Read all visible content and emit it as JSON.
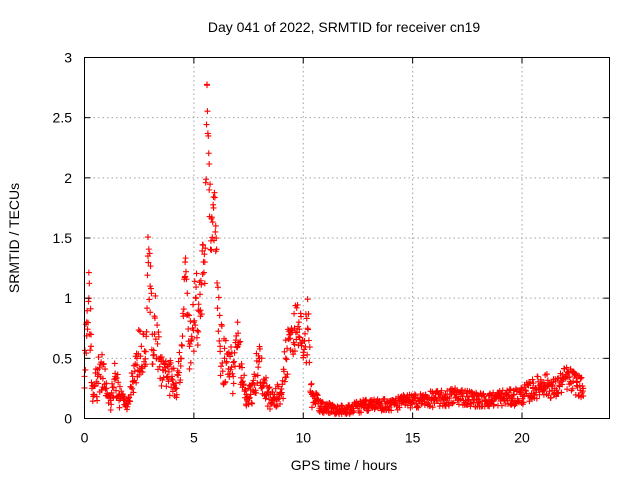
{
  "chart_data": {
    "type": "scatter",
    "title": "Day 041 of 2022, SRMTID for receiver cn19",
    "xlabel": "GPS time / hours",
    "ylabel": "SRMTID / TECUs",
    "xlim": [
      0,
      24
    ],
    "ylim": [
      0,
      3
    ],
    "xticks": [
      0,
      5,
      10,
      15,
      20
    ],
    "xtick_labels": [
      "0",
      "5",
      "10",
      "15",
      "20"
    ],
    "yticks": [
      0,
      0.5,
      1,
      1.5,
      2,
      2.5,
      3
    ],
    "ytick_labels": [
      "0",
      "0.5",
      "1",
      "1.5",
      "2",
      "2.5",
      "3"
    ],
    "grid": true,
    "marker": "+",
    "color": "#ff0000",
    "series": [
      {
        "name": "SRMTID",
        "envelope_note": "dense point cloud; x in hours, y in TECU (approximate, read from figure)",
        "x": [
          0,
          0.1,
          0.2,
          0.3,
          0.4,
          0.6,
          0.8,
          1.0,
          1.2,
          1.4,
          1.6,
          1.8,
          2.0,
          2.2,
          2.4,
          2.6,
          2.8,
          2.9,
          3.0,
          3.1,
          3.2,
          3.4,
          3.6,
          3.8,
          4.0,
          4.2,
          4.4,
          4.6,
          4.8,
          5.0,
          5.1,
          5.2,
          5.3,
          5.4,
          5.5,
          5.6,
          5.7,
          5.8,
          5.9,
          6.0,
          6.2,
          6.4,
          6.6,
          6.8,
          7.0,
          7.2,
          7.4,
          7.6,
          7.8,
          8.0,
          8.2,
          8.4,
          8.6,
          8.8,
          9.0,
          9.2,
          9.4,
          9.6,
          9.8,
          10.0,
          10.2,
          10.4,
          10.6,
          10.8,
          11.0,
          11.5,
          12.0,
          12.5,
          13.0,
          13.5,
          14.0,
          14.5,
          15.0,
          15.5,
          16.0,
          16.5,
          17.0,
          17.5,
          18.0,
          18.5,
          19.0,
          19.5,
          20.0,
          20.5,
          21.0,
          21.5,
          22.0,
          22.5,
          22.8
        ],
        "y": [
          0.35,
          0.8,
          1.0,
          0.6,
          0.2,
          0.35,
          0.45,
          0.25,
          0.15,
          0.35,
          0.2,
          0.15,
          0.12,
          0.35,
          0.5,
          0.6,
          0.45,
          1.35,
          1.1,
          0.7,
          0.85,
          0.5,
          0.4,
          0.35,
          0.35,
          0.25,
          0.5,
          1.3,
          0.6,
          0.8,
          1.0,
          0.9,
          0.85,
          1.2,
          1.3,
          2.77,
          1.9,
          1.4,
          1.75,
          1.6,
          0.6,
          0.5,
          0.55,
          0.35,
          0.8,
          0.3,
          0.2,
          0.2,
          0.35,
          0.5,
          0.3,
          0.2,
          0.15,
          0.2,
          0.2,
          0.5,
          0.7,
          0.75,
          0.8,
          0.55,
          0.75,
          0.2,
          0.15,
          0.1,
          0.1,
          0.08,
          0.08,
          0.1,
          0.12,
          0.12,
          0.12,
          0.14,
          0.15,
          0.16,
          0.17,
          0.17,
          0.2,
          0.18,
          0.16,
          0.16,
          0.18,
          0.18,
          0.2,
          0.25,
          0.3,
          0.25,
          0.35,
          0.3,
          0.25
        ],
        "spread": [
          0.1,
          0.3,
          0.3,
          0.25,
          0.1,
          0.2,
          0.2,
          0.12,
          0.08,
          0.15,
          0.1,
          0.08,
          0.06,
          0.15,
          0.2,
          0.25,
          0.2,
          0.2,
          0.3,
          0.25,
          0.3,
          0.2,
          0.15,
          0.15,
          0.15,
          0.12,
          0.2,
          0.15,
          0.25,
          0.3,
          0.3,
          0.35,
          0.35,
          0.3,
          0.3,
          0.1,
          0.3,
          0.3,
          0.2,
          0.3,
          0.3,
          0.2,
          0.25,
          0.15,
          0.2,
          0.15,
          0.1,
          0.1,
          0.15,
          0.2,
          0.15,
          0.1,
          0.08,
          0.1,
          0.1,
          0.2,
          0.2,
          0.2,
          0.2,
          0.2,
          0.3,
          0.1,
          0.08,
          0.05,
          0.05,
          0.04,
          0.04,
          0.05,
          0.05,
          0.05,
          0.05,
          0.06,
          0.06,
          0.06,
          0.07,
          0.07,
          0.08,
          0.07,
          0.06,
          0.06,
          0.07,
          0.07,
          0.08,
          0.09,
          0.1,
          0.09,
          0.1,
          0.1,
          0.08
        ]
      }
    ]
  }
}
